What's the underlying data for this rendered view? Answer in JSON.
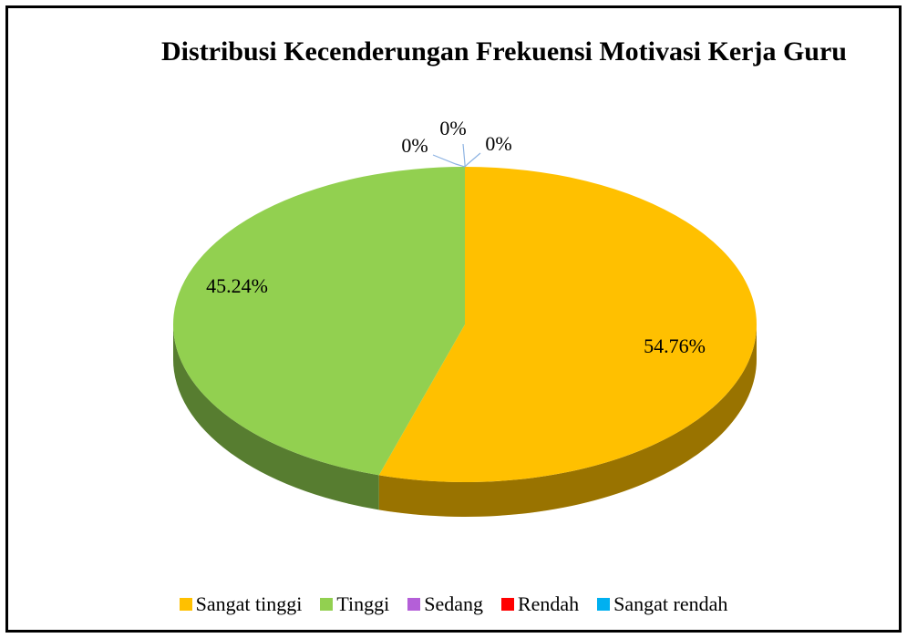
{
  "chart_data": {
    "type": "pie",
    "title": "Distribusi Kecenderungan Frekuensi Motivasi Kerja Guru",
    "categories": [
      "Sangat tinggi",
      "Tinggi",
      "Sedang",
      "Rendah",
      "Sangat rendah"
    ],
    "values": [
      54.76,
      45.24,
      0,
      0,
      0
    ],
    "value_labels": [
      "54.76%",
      "45.24%",
      "0%",
      "0%",
      "0%"
    ],
    "colors": [
      "#FFC000",
      "#92D050",
      "#B45FD8",
      "#FF0000",
      "#00B0F0"
    ],
    "legend": "bottom"
  }
}
